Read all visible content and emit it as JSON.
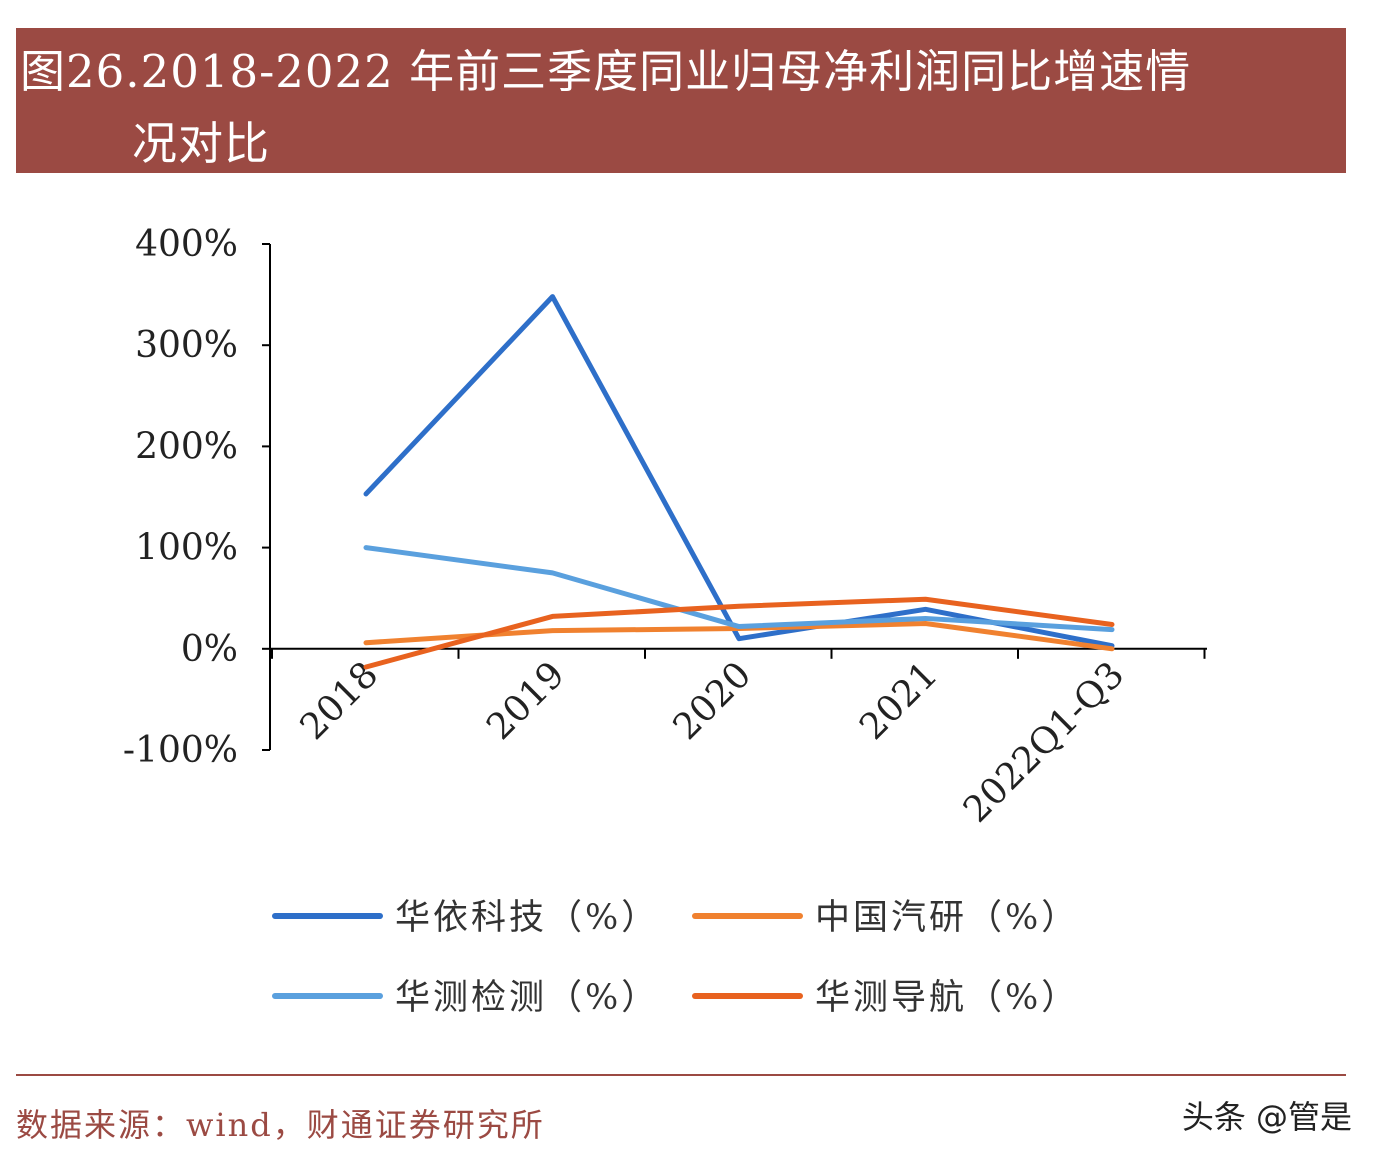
{
  "header": {
    "title_line1": "图26.2018-2022 年前三季度同业归母净利润同比增速情",
    "title_line2": "况对比"
  },
  "chart_data": {
    "type": "line",
    "categories": [
      "2018",
      "2019",
      "2020",
      "2021",
      "2022Q1-Q3"
    ],
    "y_ticks": [
      "400%",
      "300%",
      "200%",
      "100%",
      "0%",
      "-100%"
    ],
    "ylim": [
      -100,
      400
    ],
    "grid": false,
    "legend_position": "bottom",
    "series": [
      {
        "name": "华依科技（%）",
        "color": "#2e6fc9",
        "values": [
          153,
          348,
          10,
          39,
          3
        ]
      },
      {
        "name": "中国汽研（%）",
        "color": "#f0812f",
        "values": [
          6,
          18,
          20,
          25,
          0
        ]
      },
      {
        "name": "华测检测（%）",
        "color": "#5aa0de",
        "values": [
          100,
          75,
          22,
          30,
          19
        ]
      },
      {
        "name": "华测导航（%）",
        "color": "#e8621f",
        "values": [
          -18,
          32,
          42,
          49,
          24
        ]
      }
    ]
  },
  "footer": {
    "source": "数据来源：wind，财通证券研究所",
    "watermark": "头条 @管是"
  }
}
